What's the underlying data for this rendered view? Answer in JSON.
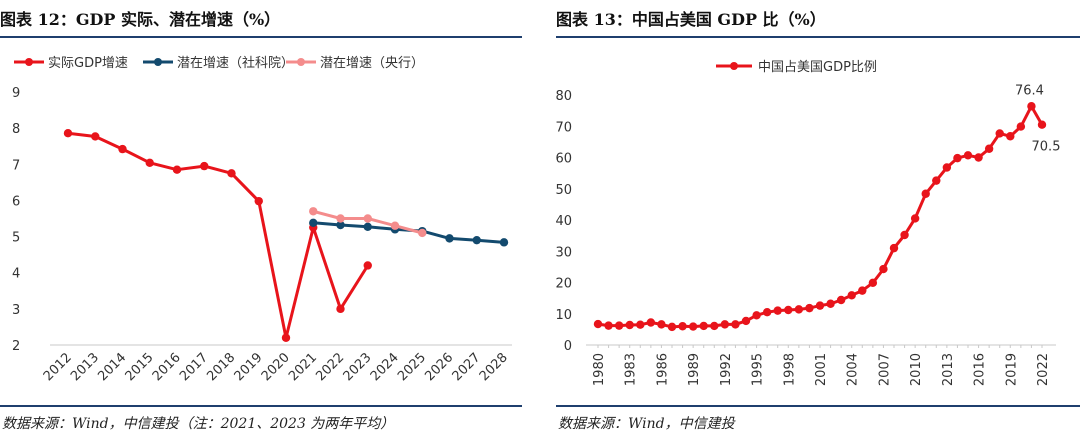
{
  "chart_data": [
    {
      "type": "line",
      "title": "图表 12：GDP 实际、潜在增速（%）",
      "source": "数据来源：Wind，中信建投（注：2021、2023 为两年平均）",
      "categories": [
        "2012",
        "2013",
        "2014",
        "2015",
        "2016",
        "2017",
        "2018",
        "2019",
        "2020",
        "2021",
        "2022",
        "2023",
        "2024",
        "2025",
        "2026",
        "2027",
        "2028"
      ],
      "ylim": [
        2,
        9
      ],
      "yticks": [
        "2",
        "3",
        "4",
        "5",
        "6",
        "7",
        "8",
        "9"
      ],
      "legend_position": "top",
      "series": [
        {
          "name": "实际GDP增速",
          "color": "#e8141b",
          "values": [
            7.86,
            7.77,
            7.42,
            7.04,
            6.85,
            6.95,
            6.75,
            5.98,
            2.2,
            5.25,
            3.0,
            4.2,
            null,
            null,
            null,
            null,
            null
          ]
        },
        {
          "name": "潜在增速（社科院）",
          "color": "#134a6e",
          "values": [
            null,
            null,
            null,
            null,
            null,
            null,
            null,
            null,
            null,
            5.38,
            5.32,
            5.27,
            5.2,
            5.15,
            4.95,
            4.9,
            4.84
          ]
        },
        {
          "name": "潜在增速（央行）",
          "color": "#f48c8c",
          "values": [
            null,
            null,
            null,
            null,
            null,
            null,
            null,
            null,
            null,
            5.7,
            5.5,
            5.5,
            5.3,
            5.1,
            null,
            null,
            null
          ]
        }
      ]
    },
    {
      "type": "line",
      "title": "图表 13：中国占美国 GDP 比（%）",
      "source": "数据来源：Wind，中信建投",
      "x": [
        1980,
        1981,
        1982,
        1983,
        1984,
        1985,
        1986,
        1987,
        1988,
        1989,
        1990,
        1991,
        1992,
        1993,
        1994,
        1995,
        1996,
        1997,
        1998,
        1999,
        2000,
        2001,
        2002,
        2003,
        2004,
        2005,
        2006,
        2007,
        2008,
        2009,
        2010,
        2011,
        2012,
        2013,
        2014,
        2015,
        2016,
        2017,
        2018,
        2019,
        2020,
        2021,
        2022
      ],
      "xticks": [
        "1980",
        "1983",
        "1986",
        "1989",
        "1992",
        "1995",
        "1998",
        "2001",
        "2004",
        "2007",
        "2010",
        "2013",
        "2016",
        "2019",
        "2022"
      ],
      "ylim": [
        0,
        80
      ],
      "yticks": [
        "0",
        "10",
        "20",
        "30",
        "40",
        "50",
        "60",
        "70",
        "80"
      ],
      "legend_position": "top",
      "annotations": [
        {
          "x": 2021,
          "y": 76.4,
          "text": "76.4"
        },
        {
          "x": 2022,
          "y": 70.5,
          "text": "70.5"
        }
      ],
      "series": [
        {
          "name": "中国占美国GDP比例",
          "color": "#e8141b",
          "values": [
            6.7,
            6.2,
            6.2,
            6.4,
            6.5,
            7.2,
            6.6,
            5.8,
            6.0,
            5.9,
            6.1,
            6.1,
            6.6,
            6.6,
            7.7,
            9.5,
            10.5,
            11.0,
            11.2,
            11.4,
            11.8,
            12.6,
            13.2,
            14.4,
            15.9,
            17.4,
            19.9,
            24.3,
            31.0,
            35.2,
            40.5,
            48.4,
            52.6,
            56.8,
            59.8,
            60.7,
            60.0,
            62.8,
            67.7,
            66.8,
            69.9,
            76.4,
            70.5
          ]
        }
      ]
    }
  ]
}
